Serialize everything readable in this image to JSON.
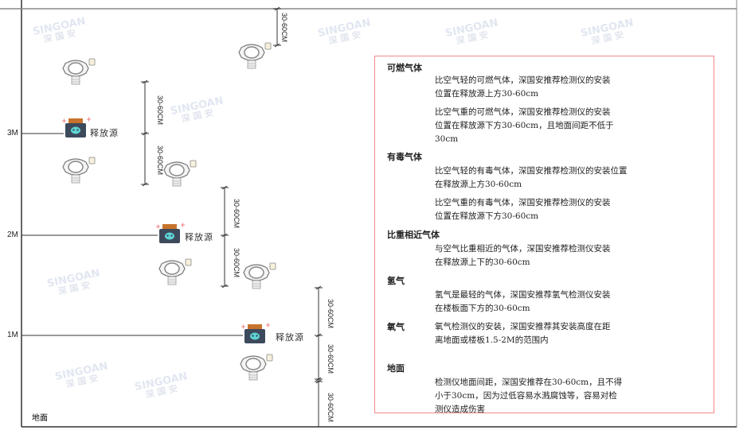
{
  "watermark": {
    "brand": "SINGOAN",
    "cn": "深国安"
  },
  "levels": [
    "3M",
    "2M",
    "1M"
  ],
  "ground_label": "地面",
  "source_label": "释放源",
  "dimension_label": "30-60CM",
  "colors": {
    "box_border": "#f08a8a",
    "source_body": "#3d4a5c",
    "source_cap": "#c8732c",
    "source_skull": "#5fd6d6"
  },
  "info": [
    {
      "heading": "可燃气体",
      "paragraphs": [
        [
          "比空气轻的可燃气体，深国安推荐检测仪的安装",
          "位置在释放源上方30-60cm"
        ],
        [
          "比空气重的可燃气体，深国安推荐检测仪的安装",
          "位置在释放源下方30-60cm，且地面间距不低于",
          "30cm"
        ]
      ]
    },
    {
      "heading": "有毒气体",
      "paragraphs": [
        [
          "比空气轻的有毒气体，深国安推荐检测仪的安装位置",
          "在释放源上方30-60cm"
        ],
        [
          "比空气重的有毒气体，深国安推荐检测仪的安装",
          "位置在释放源下方30-60cm"
        ]
      ]
    },
    {
      "heading": "比重相近气体",
      "paragraphs": [
        [
          "与空气比重相近的气体，深国安推荐检测仪安装",
          "在释放源上下的30-60cm"
        ]
      ]
    },
    {
      "heading": "氢气",
      "paragraphs": [
        [
          "氢气是最轻的气体，深国安推荐氢气检测仪安装",
          "在楼板面下方的30-60cm"
        ]
      ]
    },
    {
      "heading": "氧气",
      "paragraphs": [
        [
          "氧气检测仪的安装，深国安推荐其安装高度在距",
          "离地面或楼板1.5-2M的范围内"
        ]
      ]
    },
    {
      "heading": "地面",
      "paragraphs": [
        [
          "检测仪地面间距，深国安推荐在30-60cm，且不得",
          "小于30cm，因为过低容易水溅腐蚀等，容易对检",
          "测仪造成伤害"
        ]
      ]
    }
  ]
}
